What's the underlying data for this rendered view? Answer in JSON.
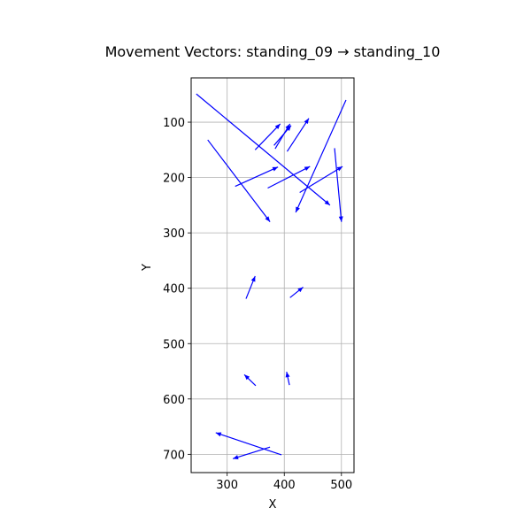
{
  "chart_data": {
    "type": "quiver",
    "title": "Movement Vectors: standing_09 → standing_10",
    "xlabel": "X",
    "ylabel": "Y",
    "xlim": [
      237,
      522
    ],
    "ylim": [
      733,
      20
    ],
    "y_inverted": true,
    "grid": true,
    "x_ticks": [
      300,
      400,
      500
    ],
    "y_ticks": [
      100,
      200,
      300,
      400,
      500,
      600,
      700
    ],
    "arrow_color": "#0000ff",
    "vectors": [
      {
        "x0": 246,
        "y0": 49,
        "x1": 480,
        "y1": 250
      },
      {
        "x0": 266,
        "y0": 132,
        "x1": 375,
        "y1": 280
      },
      {
        "x0": 349,
        "y0": 150,
        "x1": 393,
        "y1": 103
      },
      {
        "x0": 384,
        "y0": 148,
        "x1": 410,
        "y1": 103
      },
      {
        "x0": 382,
        "y0": 142,
        "x1": 412,
        "y1": 106
      },
      {
        "x0": 405,
        "y0": 153,
        "x1": 443,
        "y1": 93
      },
      {
        "x0": 508,
        "y0": 60,
        "x1": 420,
        "y1": 263
      },
      {
        "x0": 488,
        "y0": 147,
        "x1": 500,
        "y1": 280
      },
      {
        "x0": 314,
        "y0": 216,
        "x1": 389,
        "y1": 181
      },
      {
        "x0": 371,
        "y0": 219,
        "x1": 445,
        "y1": 180
      },
      {
        "x0": 427,
        "y0": 227,
        "x1": 502,
        "y1": 180
      },
      {
        "x0": 333,
        "y0": 419,
        "x1": 349,
        "y1": 378
      },
      {
        "x0": 410,
        "y0": 417,
        "x1": 433,
        "y1": 398
      },
      {
        "x0": 350,
        "y0": 576,
        "x1": 330,
        "y1": 556
      },
      {
        "x0": 409,
        "y0": 575,
        "x1": 404,
        "y1": 551
      },
      {
        "x0": 395,
        "y0": 701,
        "x1": 280,
        "y1": 661
      },
      {
        "x0": 375,
        "y0": 687,
        "x1": 310,
        "y1": 708
      }
    ]
  }
}
